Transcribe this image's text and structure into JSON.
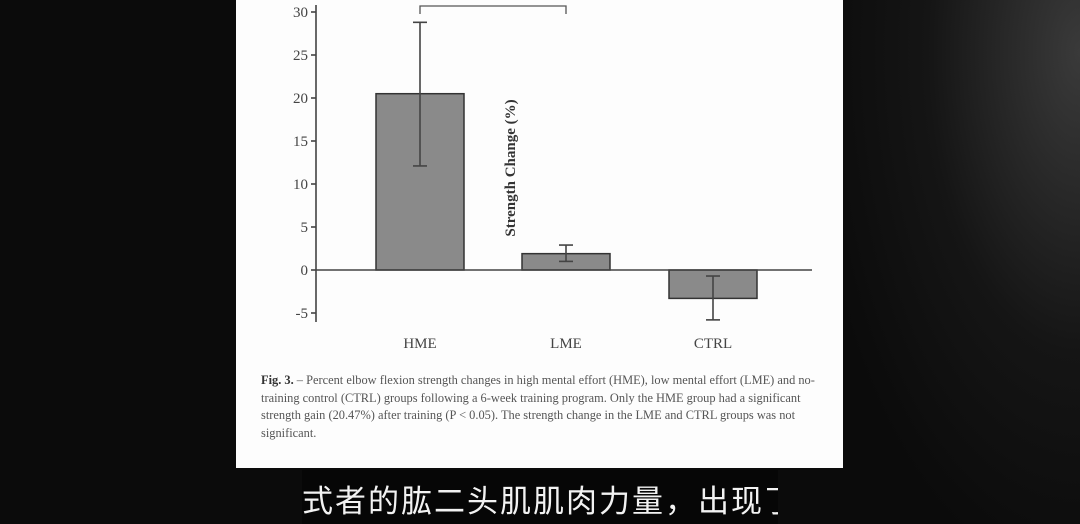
{
  "chart_data": {
    "type": "bar",
    "categories": [
      "HME",
      "LME",
      "CTRL"
    ],
    "values": [
      20.5,
      1.9,
      -3.3
    ],
    "error_low": [
      12.1,
      1.0,
      -5.8
    ],
    "error_high": [
      28.8,
      2.9,
      -0.7
    ],
    "ylabel": "Strength Change (%)",
    "xlabel": "",
    "ylim": [
      -6,
      30
    ],
    "yticks": [
      -5,
      0,
      5,
      10,
      15,
      20,
      25,
      30
    ],
    "grid": false,
    "bar_color": "#8a8a8a",
    "significance_bracket": [
      "HME",
      "LME"
    ]
  },
  "caption": {
    "label": "Fig. 3.",
    "text": " – Percent elbow flexion strength changes in high mental effort (HME), low mental effort (LME) and no-training control (CTRL) groups following a 6-week training program. Only the HME group had a significant strength gain (20.47%) after training (P < 0.05). The strength change in the LME and CTRL groups was not significant."
  },
  "subtitle": "式者的肱二头肌肌肉力量，出现了"
}
